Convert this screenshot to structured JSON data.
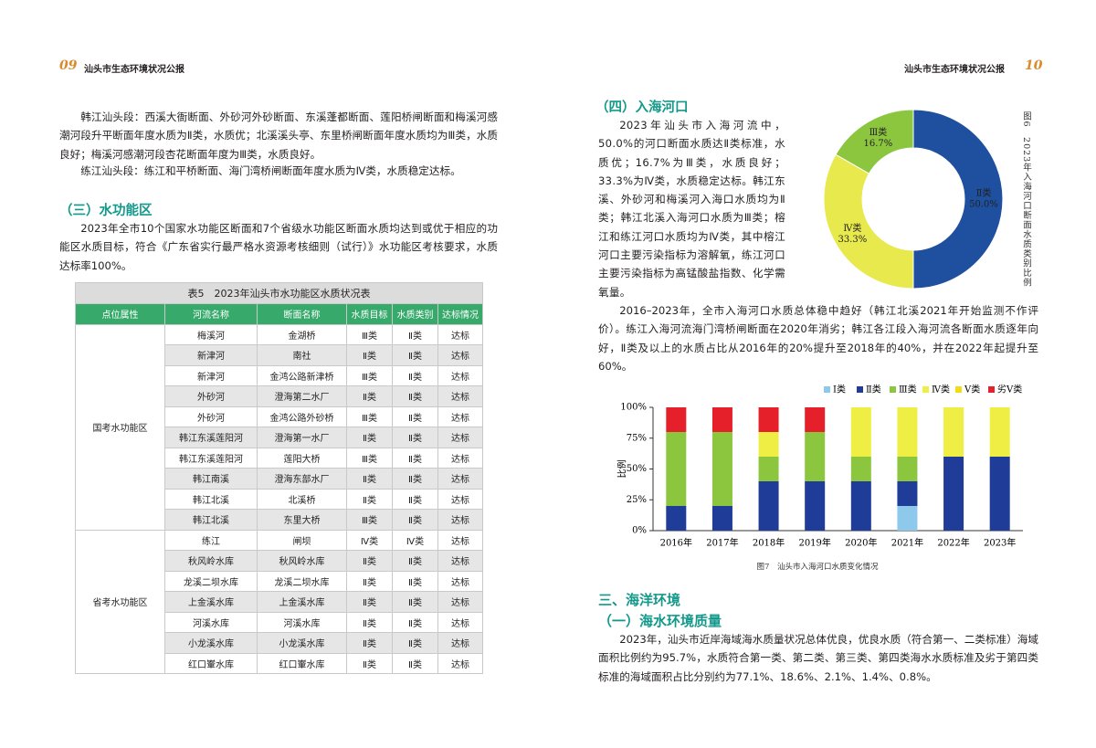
{
  "left_page": {
    "page_number": "09",
    "header_title": "汕头市生态环境状况公报",
    "paragraph_1": "韩江汕头段：西溪大衙断面、外砂河外砂断面、东溪蓬都断面、莲阳桥闸断面和梅溪河感潮河段升平断面年度水质为Ⅱ类，水质优；北溪溪头亭、东里桥闸断面年度水质均为Ⅲ类，水质良好；梅溪河感潮河段杏花断面年度为Ⅲ类，水质良好。",
    "paragraph_2": "练江汕头段：练江和平桥断面、海门湾桥闸断面年度水质为Ⅳ类，水质稳定达标。",
    "heading": "（三）水功能区",
    "paragraph_3": "2023年全市10个国家水功能区断面和7个省级水功能区断面水质均达到或优于相应的功能区水质目标，符合《广东省实行最严格水资源考核细则（试行）》水功能区考核要求，水质达标率100%。"
  },
  "table": {
    "title": "表5　2023年汕头市水功能区水质状况表",
    "columns": [
      "点位属性",
      "河流名称",
      "断面名称",
      "水质目标",
      "水质类别",
      "达标情况"
    ],
    "groups": [
      {
        "label": "国考水功能区",
        "rows": [
          [
            "梅溪河",
            "金湖桥",
            "Ⅲ类",
            "Ⅱ类",
            "达标"
          ],
          [
            "新津河",
            "南社",
            "Ⅱ类",
            "Ⅱ类",
            "达标"
          ],
          [
            "新津河",
            "金鸿公路新津桥",
            "Ⅲ类",
            "Ⅱ类",
            "达标"
          ],
          [
            "外砂河",
            "澄海第二水厂",
            "Ⅱ类",
            "Ⅱ类",
            "达标"
          ],
          [
            "外砂河",
            "金鸿公路外砂桥",
            "Ⅲ类",
            "Ⅱ类",
            "达标"
          ],
          [
            "韩江东溪莲阳河",
            "澄海第一水厂",
            "Ⅱ类",
            "Ⅱ类",
            "达标"
          ],
          [
            "韩江东溪莲阳河",
            "莲阳大桥",
            "Ⅲ类",
            "Ⅱ类",
            "达标"
          ],
          [
            "韩江南溪",
            "澄海东部水厂",
            "Ⅱ类",
            "Ⅱ类",
            "达标"
          ],
          [
            "韩江北溪",
            "北溪桥",
            "Ⅱ类",
            "Ⅱ类",
            "达标"
          ],
          [
            "韩江北溪",
            "东里大桥",
            "Ⅲ类",
            "Ⅱ类",
            "达标"
          ]
        ]
      },
      {
        "label": "省考水功能区",
        "rows": [
          [
            "练江",
            "闸坝",
            "Ⅳ类",
            "Ⅳ类",
            "达标"
          ],
          [
            "秋风岭水库",
            "秋风岭水库",
            "Ⅱ类",
            "Ⅱ类",
            "达标"
          ],
          [
            "龙溪二坝水库",
            "龙溪二坝水库",
            "Ⅱ类",
            "Ⅱ类",
            "达标"
          ],
          [
            "上金溪水库",
            "上金溪水库",
            "Ⅱ类",
            "Ⅱ类",
            "达标"
          ],
          [
            "河溪水库",
            "河溪水库",
            "Ⅱ类",
            "Ⅱ类",
            "达标"
          ],
          [
            "小龙溪水库",
            "小龙溪水库",
            "Ⅱ类",
            "Ⅱ类",
            "达标"
          ],
          [
            "红口輋水库",
            "红口輋水库",
            "Ⅱ类",
            "Ⅱ类",
            "达标"
          ]
        ]
      }
    ]
  },
  "right_page": {
    "page_number": "10",
    "header_title": "汕头市生态环境状况公报",
    "heading_1": "（四）入海河口",
    "paragraph_1": "2023年汕头市入海河流中，50.0%的河口断面水质达Ⅱ类标准，水质优；16.7%为Ⅲ类，水质良好；33.3%为Ⅳ类，水质稳定达标。韩江东溪、外砂河和梅溪河入海口水质均为Ⅱ类；韩江北溪入海河口水质为Ⅲ类；榕江和练江河口水质均为Ⅳ类，其中榕江河口主要污染指标为溶解氧，练江河口主要污染指标为高锰酸盐指数、化学需氧量。",
    "paragraph_2": "2016–2023年，全市入海河口水质总体稳中趋好（韩江北溪2021年开始监测不作评价）。练江入海河流海门湾桥闸断面在2020年消劣；韩江各江段入海河流各断面水质逐年向好，Ⅱ类及以上的水质占比从2016年的20%提升至2018年的40%，并在2022年起提升至60%。",
    "heading_2": "三、海洋环境",
    "heading_3": "（一）海水环境质量",
    "paragraph_3": "2023年，汕头市近岸海域海水质量状况总体优良，优良水质（符合第一、二类标准）海域面积比例约为95.7%，水质符合第一类、第二类、第三类、第四类海水水质标准及劣于第四类标准的海域面积占比分别约为77.1%、18.6%、2.1%、1.4%、0.8%。"
  },
  "chart_data": [
    {
      "type": "donut",
      "caption": "图6　2023年入海河口断面水质类别比例",
      "categories": [
        "Ⅱ类",
        "Ⅳ类",
        "Ⅲ类"
      ],
      "values": [
        50,
        33.3,
        16.7
      ],
      "value_labels": [
        "50.0%",
        "33.3%",
        "16.7%"
      ],
      "colors": [
        "#1f4f9f",
        "#e8e94c",
        "#8cc63f"
      ]
    },
    {
      "type": "stacked_bar",
      "caption": "图7　汕头市入海河口水质变化情况",
      "ylabel": "比例",
      "categories": [
        "2016年",
        "2017年",
        "2018年",
        "2019年",
        "2020年",
        "2021年",
        "2022年",
        "2023年"
      ],
      "series": [
        {
          "name": "Ⅰ类",
          "color": "#8ec8ea",
          "values": [
            0,
            0,
            0,
            0,
            0,
            20,
            0,
            0
          ]
        },
        {
          "name": "Ⅱ类",
          "color": "#1f3c98",
          "values": [
            20,
            20,
            40,
            40,
            40,
            20,
            60,
            60
          ]
        },
        {
          "name": "Ⅲ类",
          "color": "#8cc63f",
          "values": [
            60,
            60,
            20,
            40,
            20,
            20,
            0,
            0
          ]
        },
        {
          "name": "Ⅳ类",
          "color": "#eeee44",
          "values": [
            0,
            0,
            20,
            0,
            40,
            40,
            40,
            40
          ]
        },
        {
          "name": "Ⅴ类",
          "color": "#f2dc1a",
          "values": [
            0,
            0,
            0,
            0,
            0,
            0,
            0,
            0
          ]
        },
        {
          "name": "劣Ⅴ类",
          "color": "#e5202b",
          "values": [
            20,
            20,
            20,
            20,
            0,
            0,
            0,
            0
          ]
        }
      ],
      "ylim": [
        0,
        100
      ],
      "yticks": [
        {
          "value": 0,
          "label": "0%"
        },
        {
          "value": 25,
          "label": "25%"
        },
        {
          "value": 50,
          "label": "50%"
        },
        {
          "value": 75,
          "label": "75%"
        },
        {
          "value": 100,
          "label": "100%"
        }
      ],
      "legend": "top-right"
    }
  ]
}
